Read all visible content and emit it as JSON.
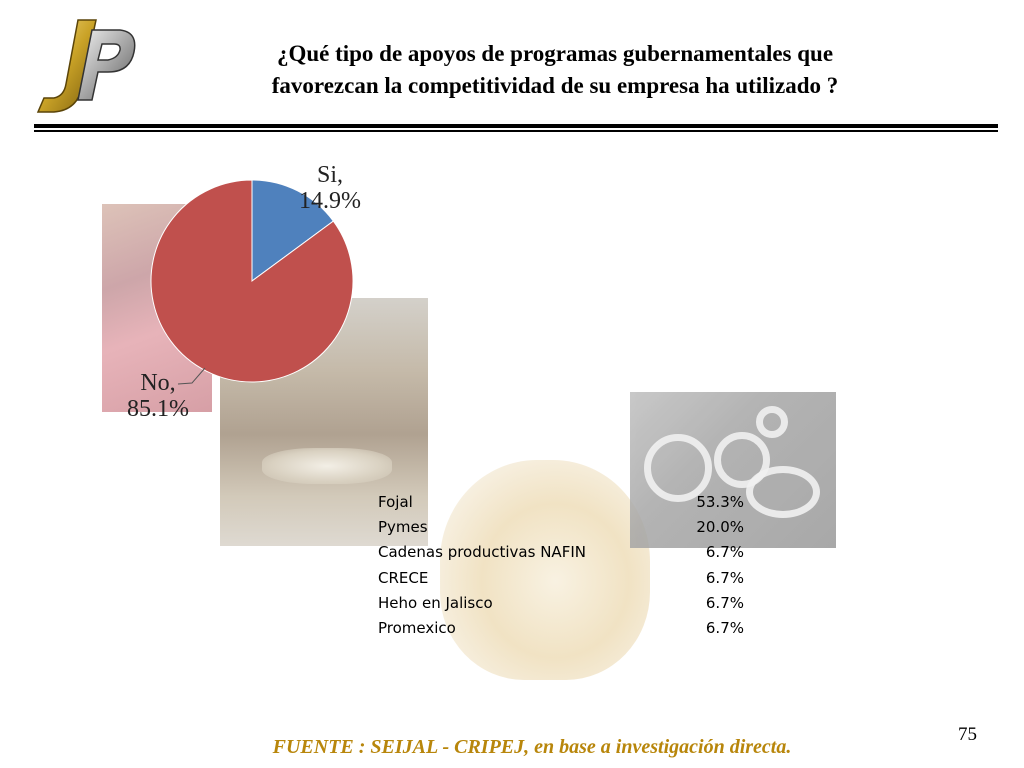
{
  "slide": {
    "title_line1": "¿Qué tipo de apoyos de programas gubernamentales que",
    "title_line2": "favorezcan la competitividad de su empresa ha utilizado ?",
    "page_number": "75",
    "footer": "FUENTE :  SEIJAL - CRIPEJ,  en base a investigación directa."
  },
  "chart_data": [
    {
      "type": "pie",
      "slices": [
        {
          "label": "Si,",
          "value": 14.9,
          "value_label": "14.9%",
          "color": "#4f81bd"
        },
        {
          "label": "No,",
          "value": 85.1,
          "value_label": "85.1%",
          "color": "#c0504d"
        }
      ]
    },
    {
      "type": "table",
      "rows": [
        {
          "name": "Fojal",
          "value": "53.3%"
        },
        {
          "name": "Pymes",
          "value": "20.0%"
        },
        {
          "name": "Cadenas productivas NAFIN",
          "value": "6.7%"
        },
        {
          "name": "CRECE",
          "value": "6.7%"
        },
        {
          "name": "Heho en Jalisco",
          "value": "6.7%"
        },
        {
          "name": "Promexico",
          "value": "6.7%"
        }
      ]
    }
  ],
  "colors": {
    "footer": "#b8860b",
    "logo_gold": "#c9a227",
    "logo_silver": "#a7a7a7"
  },
  "icons": {
    "logo": "jp-monogram-logo"
  }
}
